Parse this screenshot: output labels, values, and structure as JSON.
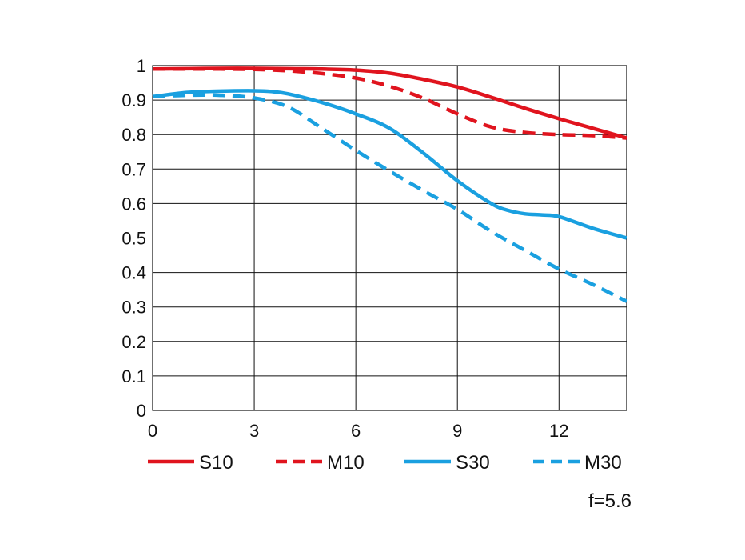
{
  "chart_data": {
    "type": "line",
    "xlim": [
      0,
      14
    ],
    "ylim": [
      0,
      1
    ],
    "x_ticks": [
      0,
      3,
      6,
      9,
      12
    ],
    "y_ticks": [
      0,
      0.1,
      0.2,
      0.3,
      0.4,
      0.5,
      0.6,
      0.7,
      0.8,
      0.9,
      1
    ],
    "x_tick_labels": [
      "0",
      "3",
      "6",
      "9",
      "12"
    ],
    "y_tick_labels": [
      "0",
      "0.1",
      "0.2",
      "0.3",
      "0.4",
      "0.5",
      "0.6",
      "0.7",
      "0.8",
      "0.9",
      "1"
    ],
    "grid": true,
    "legend_placement": "bottom",
    "annotation": "f=5.6",
    "series": [
      {
        "name": "S10",
        "color": "#e0141e",
        "dash": "solid",
        "x": [
          0,
          1,
          2,
          3,
          4,
          5,
          6,
          7,
          8,
          9,
          10,
          11,
          12,
          13,
          14
        ],
        "y": [
          0.99,
          0.991,
          0.992,
          0.992,
          0.991,
          0.99,
          0.987,
          0.978,
          0.96,
          0.938,
          0.908,
          0.876,
          0.846,
          0.818,
          0.79
        ]
      },
      {
        "name": "M10",
        "color": "#e0141e",
        "dash": "dashed",
        "x": [
          0,
          1,
          2,
          3,
          4,
          5,
          6,
          7,
          8,
          9,
          10,
          11,
          12,
          13,
          14
        ],
        "y": [
          0.99,
          0.99,
          0.99,
          0.989,
          0.985,
          0.977,
          0.964,
          0.94,
          0.905,
          0.86,
          0.822,
          0.806,
          0.8,
          0.797,
          0.79
        ]
      },
      {
        "name": "S30",
        "color": "#1aa0e0",
        "dash": "solid",
        "x": [
          0,
          1,
          2,
          3,
          3.5,
          4,
          5,
          6,
          7,
          8,
          9,
          10,
          10.5,
          11,
          11.5,
          12,
          13,
          14
        ],
        "y": [
          0.91,
          0.922,
          0.926,
          0.927,
          0.925,
          0.918,
          0.893,
          0.86,
          0.818,
          0.746,
          0.666,
          0.6,
          0.58,
          0.57,
          0.567,
          0.562,
          0.528,
          0.5
        ]
      },
      {
        "name": "M30",
        "color": "#1aa0e0",
        "dash": "dashed",
        "x": [
          0,
          1,
          2,
          3,
          4,
          5,
          6,
          7,
          8,
          9,
          10,
          11,
          12,
          13,
          14
        ],
        "y": [
          0.91,
          0.914,
          0.914,
          0.906,
          0.88,
          0.818,
          0.754,
          0.694,
          0.637,
          0.583,
          0.519,
          0.464,
          0.41,
          0.365,
          0.316
        ]
      }
    ]
  }
}
